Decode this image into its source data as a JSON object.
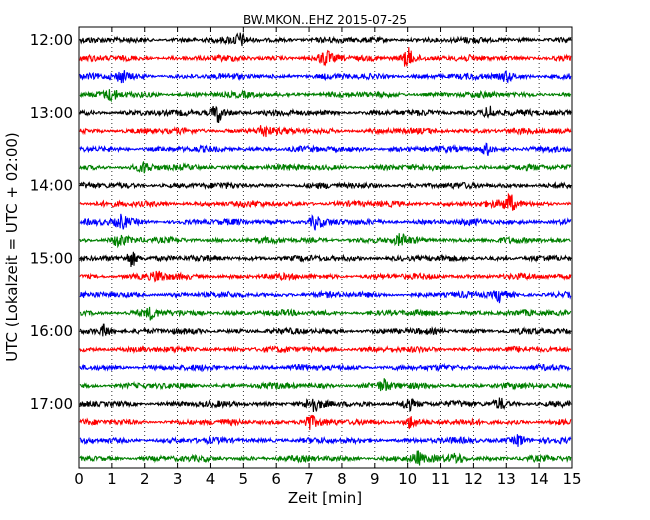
{
  "chart_data": {
    "type": "line",
    "title": "BW.MKON..EHZ 2015-07-25",
    "xlabel": "Zeit  [min]",
    "ylabel": "UTC (Lokalzeit = UTC + 02:00)",
    "xlim": [
      0,
      15
    ],
    "x_ticks": [
      "0",
      "1",
      "2",
      "3",
      "4",
      "5",
      "6",
      "7",
      "8",
      "9",
      "10",
      "11",
      "12",
      "13",
      "14",
      "15"
    ],
    "y_tick_labels": [
      "12:00",
      "13:00",
      "14:00",
      "15:00",
      "16:00",
      "17:00"
    ],
    "trace_start_hour": "12:00",
    "trace_interval_minutes": 15,
    "trace_count": 24,
    "trace_colors": [
      "#000000",
      "#ff0000",
      "#0000ff",
      "#008000"
    ],
    "grid": "vertical dotted at each minute",
    "bursts": [
      {
        "trace": 0,
        "minute": 4.9,
        "amp": 1.6
      },
      {
        "trace": 1,
        "minute": 7.5,
        "amp": 1.8
      },
      {
        "trace": 1,
        "minute": 10.0,
        "amp": 3.0
      },
      {
        "trace": 2,
        "minute": 1.3,
        "amp": 1.5
      },
      {
        "trace": 2,
        "minute": 13.0,
        "amp": 1.5
      },
      {
        "trace": 3,
        "minute": 1.0,
        "amp": 1.4
      },
      {
        "trace": 4,
        "minute": 4.2,
        "amp": 3.0
      },
      {
        "trace": 4,
        "minute": 12.5,
        "amp": 2.0
      },
      {
        "trace": 5,
        "minute": 5.6,
        "amp": 1.9
      },
      {
        "trace": 6,
        "minute": 12.4,
        "amp": 1.6
      },
      {
        "trace": 7,
        "minute": 2.0,
        "amp": 1.4
      },
      {
        "trace": 9,
        "minute": 13.1,
        "amp": 2.6
      },
      {
        "trace": 10,
        "minute": 7.2,
        "amp": 2.0
      },
      {
        "trace": 10,
        "minute": 1.3,
        "amp": 1.8
      },
      {
        "trace": 11,
        "minute": 1.2,
        "amp": 1.8
      },
      {
        "trace": 11,
        "minute": 9.8,
        "amp": 1.5
      },
      {
        "trace": 12,
        "minute": 1.6,
        "amp": 2.4
      },
      {
        "trace": 13,
        "minute": 2.4,
        "amp": 1.6
      },
      {
        "trace": 14,
        "minute": 12.8,
        "amp": 2.0
      },
      {
        "trace": 15,
        "minute": 2.2,
        "amp": 1.5
      },
      {
        "trace": 16,
        "minute": 0.8,
        "amp": 1.8
      },
      {
        "trace": 19,
        "minute": 9.3,
        "amp": 1.6
      },
      {
        "trace": 20,
        "minute": 7.1,
        "amp": 2.2
      },
      {
        "trace": 20,
        "minute": 10.0,
        "amp": 1.8
      },
      {
        "trace": 20,
        "minute": 12.8,
        "amp": 1.6
      },
      {
        "trace": 21,
        "minute": 7.0,
        "amp": 2.2
      },
      {
        "trace": 21,
        "minute": 10.1,
        "amp": 1.8
      },
      {
        "trace": 22,
        "minute": 13.4,
        "amp": 1.8
      },
      {
        "trace": 23,
        "minute": 10.3,
        "amp": 1.8
      },
      {
        "trace": 23,
        "minute": 11.5,
        "amp": 1.5
      }
    ]
  }
}
